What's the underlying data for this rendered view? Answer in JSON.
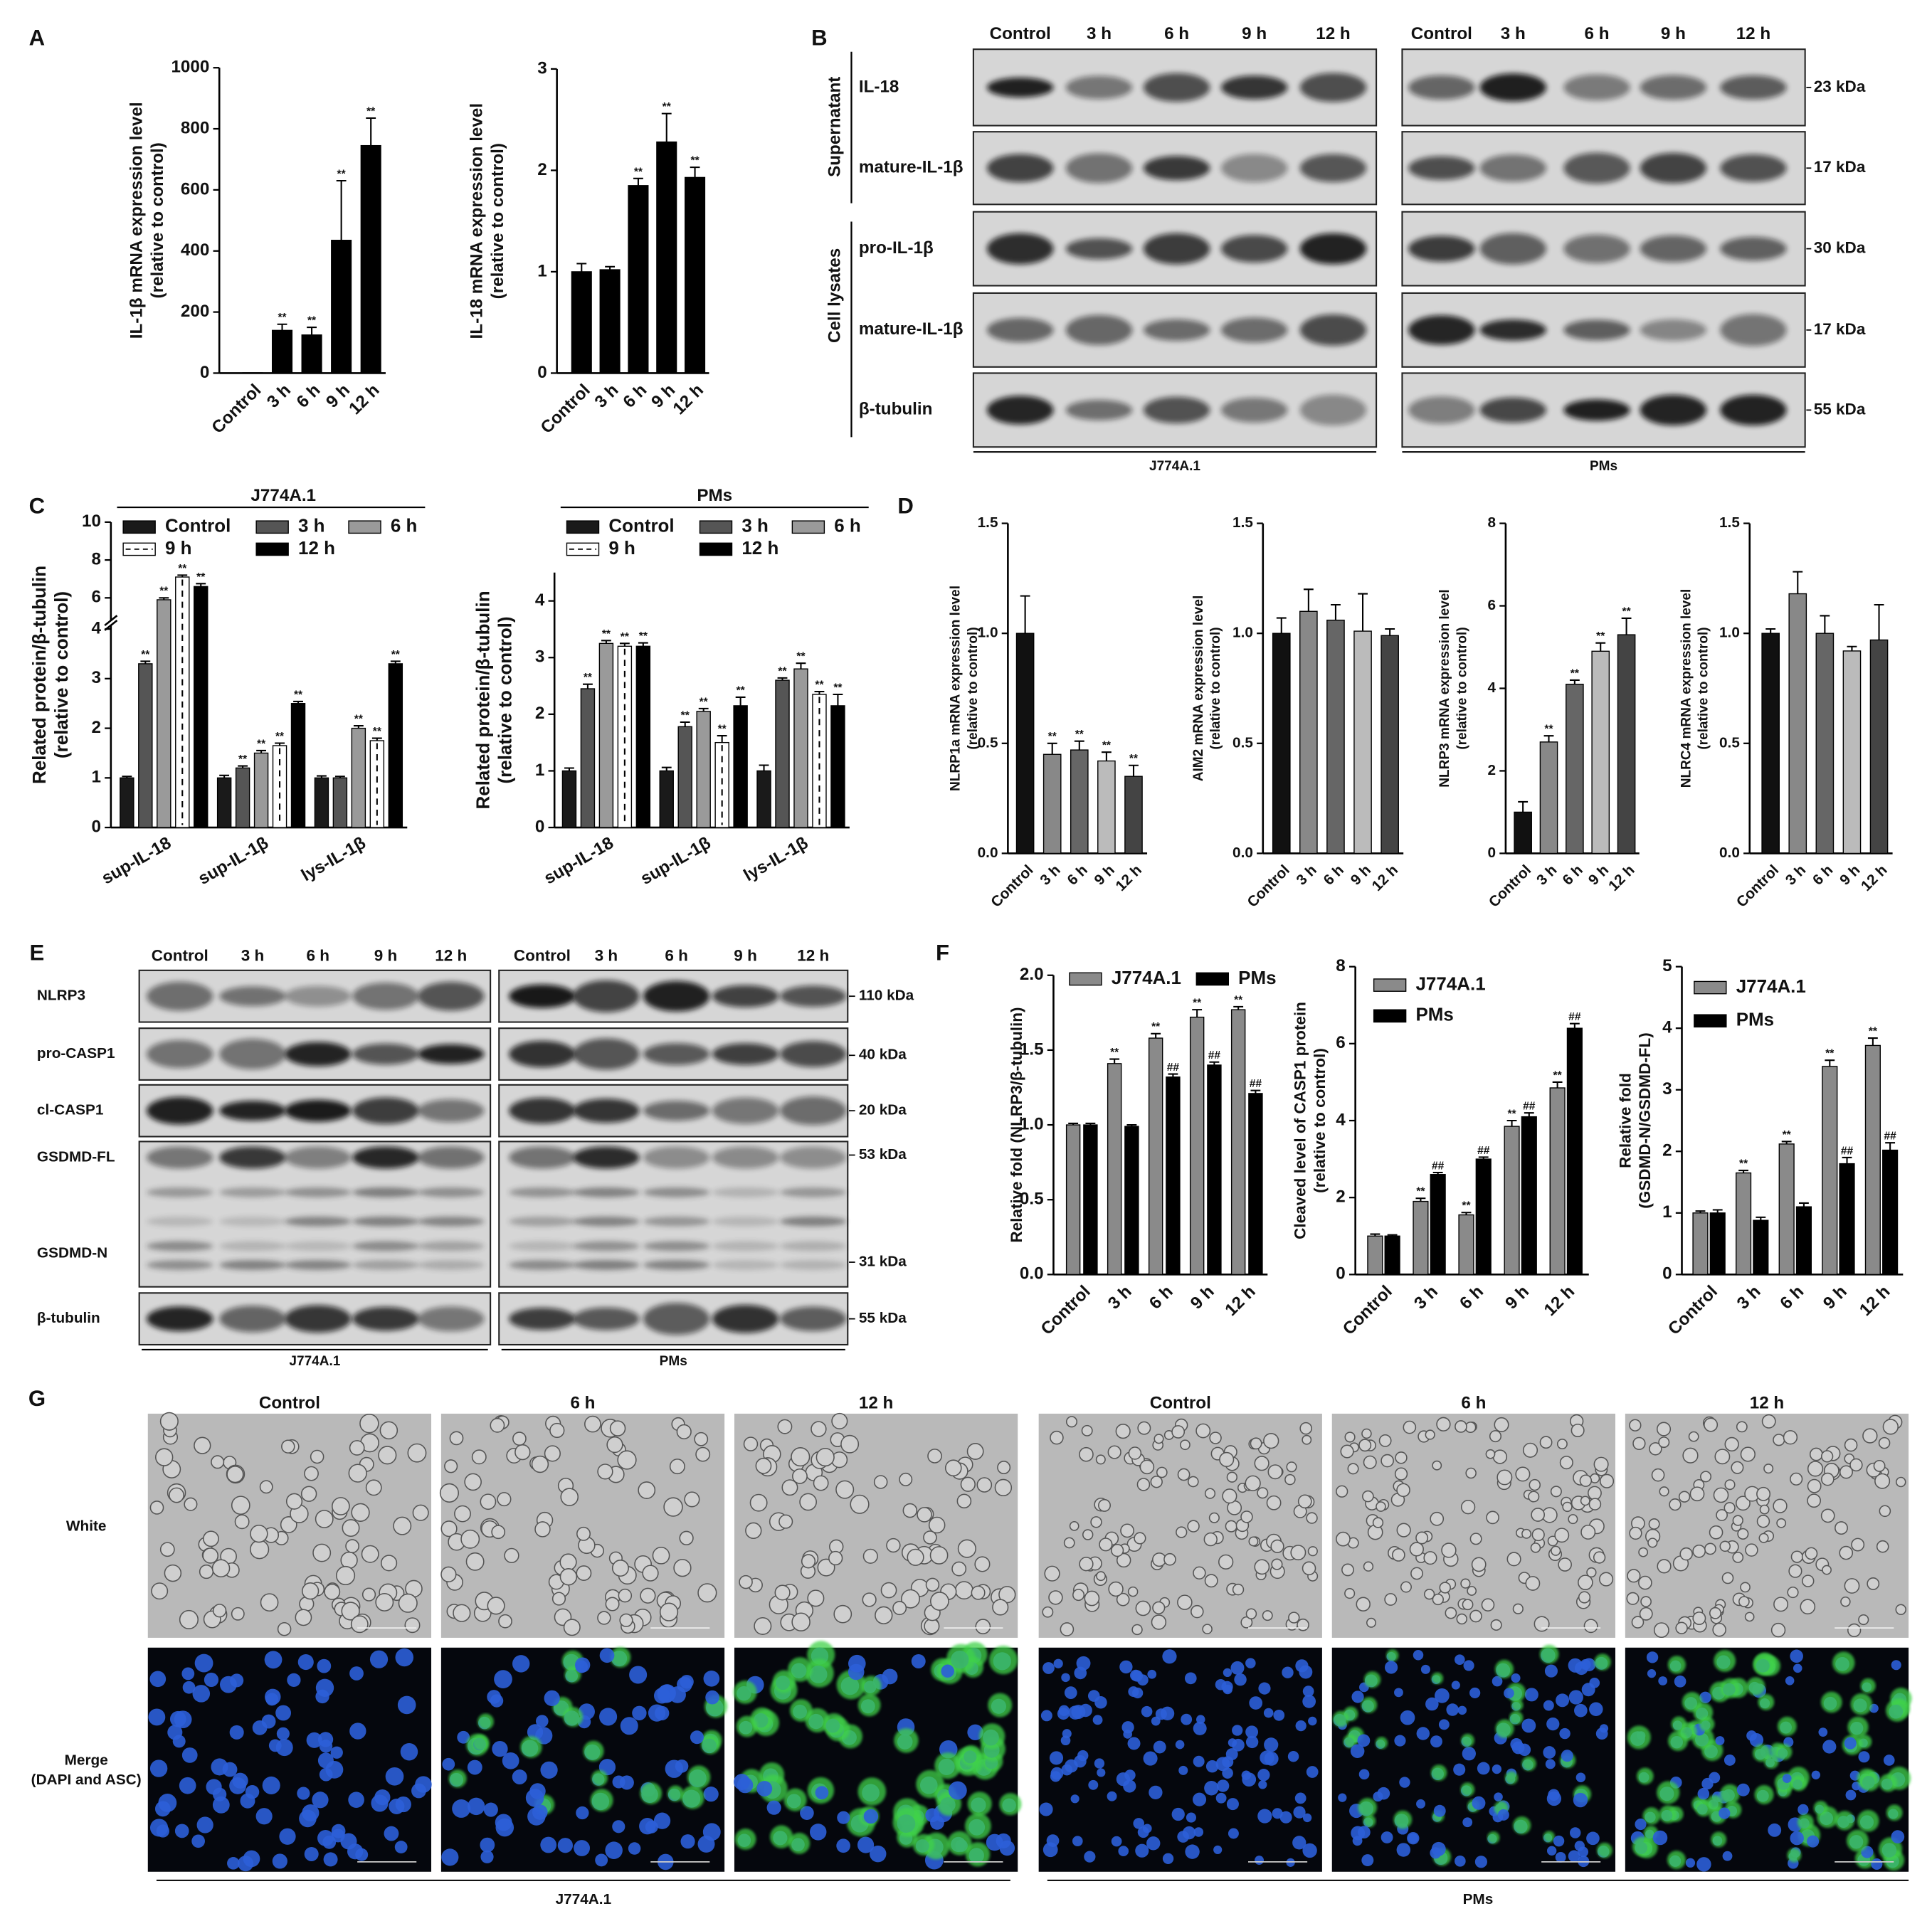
{
  "panel_labels": [
    "A",
    "B",
    "C",
    "D",
    "E",
    "F",
    "G"
  ],
  "chart_data": [
    {
      "type": "bar",
      "ylabel": [
        "IL-1β mRNA expression level",
        "(relative to control)"
      ],
      "categories": [
        "Control",
        "3 h",
        "6 h",
        "9 h",
        "12 h"
      ],
      "values": [
        1,
        140,
        125,
        435,
        745
      ],
      "errors": [
        null,
        20,
        25,
        195,
        90
      ],
      "annotations": [
        null,
        "**",
        "**",
        "**",
        "**"
      ],
      "colors": [
        "#000000",
        "#000000",
        "#000000",
        "#000000",
        "#000000"
      ],
      "ylim": [
        0,
        1000
      ],
      "yticks": [
        0,
        200,
        400,
        600,
        800,
        1000
      ]
    },
    {
      "type": "bar",
      "ylabel": [
        "IL-18 mRNA expression level",
        "(relative to control)"
      ],
      "categories": [
        "Control",
        "3 h",
        "6 h",
        "9 h",
        "12 h"
      ],
      "values": [
        1.0,
        1.02,
        1.85,
        2.28,
        1.93
      ],
      "errors": [
        0.08,
        0.03,
        0.07,
        0.28,
        0.1
      ],
      "annotations": [
        null,
        null,
        "**",
        "**",
        "**"
      ],
      "colors": [
        "#000000",
        "#000000",
        "#000000",
        "#000000",
        "#000000"
      ],
      "ylim": [
        0,
        3
      ],
      "yticks": [
        0,
        1,
        2,
        3
      ]
    },
    {
      "type": "bar",
      "title": "J774A.1",
      "ylabel": [
        "Related protein/β-tubulin",
        "(relative to control)"
      ],
      "categories": [
        "sup-IL-18",
        "sup-IL-1β",
        "lys-IL-1β"
      ],
      "series": [
        {
          "name": "Control",
          "color": "#1a1a1a",
          "values": [
            1,
            1,
            1
          ],
          "errors": [
            0.03,
            0.05,
            0.04
          ],
          "annotations": [
            null,
            null,
            null
          ]
        },
        {
          "name": "3 h",
          "color": "#555555",
          "values": [
            3.3,
            1.2,
            1.0
          ],
          "errors": [
            0.05,
            0.04,
            0.03
          ],
          "annotations": [
            "**",
            "**",
            null
          ]
        },
        {
          "name": "6 h",
          "color": "#9a9a9a",
          "values": [
            5.9,
            1.5,
            2.0
          ],
          "errors": [
            0.1,
            0.05,
            0.05
          ],
          "annotations": [
            "**",
            "**",
            "**"
          ]
        },
        {
          "name": "9 h",
          "color": "#ffffff",
          "values": [
            7.1,
            1.65,
            1.75
          ],
          "errors": [
            0.1,
            0.05,
            0.05
          ],
          "annotations": [
            "**",
            "**",
            "**"
          ]
        },
        {
          "name": "12 h",
          "color": "#000000",
          "values": [
            6.6,
            2.5,
            3.3
          ],
          "errors": [
            0.15,
            0.04,
            0.05
          ],
          "annotations": [
            "**",
            "**",
            "**"
          ]
        }
      ],
      "ylim": [
        0,
        10
      ],
      "axis_break": [
        4,
        5
      ],
      "yticks": [
        0,
        1,
        2,
        3,
        4,
        6,
        8,
        10
      ]
    },
    {
      "type": "bar",
      "title": "PMs",
      "ylabel": [
        "Related protein/β-tubulin",
        "(relative to control)"
      ],
      "categories": [
        "sup-IL-18",
        "sup-IL-1β",
        "lys-IL-1β"
      ],
      "series": [
        {
          "name": "Control",
          "color": "#1a1a1a",
          "values": [
            1,
            1,
            1
          ],
          "errors": [
            0.05,
            0.06,
            0.1
          ],
          "annotations": [
            null,
            null,
            null
          ]
        },
        {
          "name": "3 h",
          "color": "#555555",
          "values": [
            2.45,
            1.78,
            2.6
          ],
          "errors": [
            0.08,
            0.08,
            0.04
          ],
          "annotations": [
            "**",
            "**",
            "**"
          ]
        },
        {
          "name": "6 h",
          "color": "#9a9a9a",
          "values": [
            3.25,
            2.05,
            2.8
          ],
          "errors": [
            0.05,
            0.05,
            0.1
          ],
          "annotations": [
            "**",
            "**",
            "**"
          ]
        },
        {
          "name": "9 h",
          "color": "#ffffff",
          "values": [
            3.2,
            1.5,
            2.35
          ],
          "errors": [
            0.05,
            0.12,
            0.05
          ],
          "annotations": [
            "**",
            "**",
            "**"
          ]
        },
        {
          "name": "12 h",
          "color": "#000000",
          "values": [
            3.2,
            2.15,
            2.15
          ],
          "errors": [
            0.06,
            0.15,
            0.2
          ],
          "annotations": [
            "**",
            "**",
            "**"
          ]
        }
      ],
      "ylim": [
        0,
        4.5
      ],
      "yticks": [
        0,
        1,
        2,
        3,
        4
      ]
    },
    {
      "type": "bar",
      "ylabel": [
        "NLRP1a mRNA expression level",
        "(relative to control)"
      ],
      "categories": [
        "Control",
        "3 h",
        "6 h",
        "9 h",
        "12 h"
      ],
      "values": [
        1.0,
        0.45,
        0.47,
        0.42,
        0.35
      ],
      "errors": [
        0.17,
        0.05,
        0.04,
        0.04,
        0.05
      ],
      "annotations": [
        null,
        "**",
        "**",
        "**",
        "**"
      ],
      "colors": [
        "#111111",
        "#888888",
        "#666666",
        "#bbbbbb",
        "#444444"
      ],
      "ylim": [
        0,
        1.5
      ],
      "yticks": [
        {
          "value": 0,
          "label": "0.0"
        },
        0.5,
        {
          "value": 1,
          "label": "1.0"
        },
        1.5
      ]
    },
    {
      "type": "bar",
      "ylabel": [
        "AIM2 mRNA expression level",
        "(relative to control)"
      ],
      "categories": [
        "Control",
        "3 h",
        "6 h",
        "9 h",
        "12 h"
      ],
      "values": [
        1.0,
        1.1,
        1.06,
        1.01,
        0.99
      ],
      "errors": [
        0.07,
        0.1,
        0.07,
        0.17,
        0.03
      ],
      "annotations": [
        null,
        null,
        null,
        null,
        null
      ],
      "colors": [
        "#111111",
        "#888888",
        "#666666",
        "#bbbbbb",
        "#444444"
      ],
      "ylim": [
        0,
        1.5
      ],
      "yticks": [
        {
          "value": 0,
          "label": "0.0"
        },
        0.5,
        {
          "value": 1,
          "label": "1.0"
        },
        1.5
      ]
    },
    {
      "type": "bar",
      "ylabel": [
        "NLRP3 mRNA expression level",
        "(relative to control)"
      ],
      "categories": [
        "Control",
        "3 h",
        "6 h",
        "9 h",
        "12 h"
      ],
      "values": [
        1.0,
        2.7,
        4.1,
        4.9,
        5.3
      ],
      "errors": [
        0.25,
        0.15,
        0.1,
        0.2,
        0.4
      ],
      "annotations": [
        null,
        "**",
        "**",
        "**",
        "**"
      ],
      "colors": [
        "#111111",
        "#888888",
        "#666666",
        "#bbbbbb",
        "#444444"
      ],
      "ylim": [
        0,
        8
      ],
      "yticks": [
        0,
        2,
        4,
        6,
        8
      ]
    },
    {
      "type": "bar",
      "ylabel": [
        "NLRC4 mRNA expression level",
        "(relative to control)"
      ],
      "categories": [
        "Control",
        "3 h",
        "6 h",
        "9 h",
        "12 h"
      ],
      "values": [
        1.0,
        1.18,
        1.0,
        0.92,
        0.97
      ],
      "errors": [
        0.02,
        0.1,
        0.08,
        0.02,
        0.16
      ],
      "annotations": [
        null,
        null,
        null,
        null,
        null
      ],
      "colors": [
        "#111111",
        "#888888",
        "#666666",
        "#bbbbbb",
        "#444444"
      ],
      "ylim": [
        0,
        1.5
      ],
      "yticks": [
        {
          "value": 0,
          "label": "0.0"
        },
        0.5,
        {
          "value": 1,
          "label": "1.0"
        },
        1.5
      ]
    },
    {
      "type": "bar",
      "ylabel": [
        "Relative fold (NLRP3/β-tubulin)"
      ],
      "categories": [
        "Control",
        "3 h",
        "6 h",
        "9 h",
        "12 h"
      ],
      "series": [
        {
          "name": "J774A.1",
          "color": "#8a8a8a",
          "values": [
            1.0,
            1.41,
            1.58,
            1.72,
            1.77
          ],
          "errors": [
            0.01,
            0.03,
            0.03,
            0.05,
            0.02
          ],
          "annotations": [
            null,
            "**",
            "**",
            "**",
            "**"
          ]
        },
        {
          "name": "PMs",
          "color": "#000000",
          "values": [
            1.0,
            0.99,
            1.32,
            1.4,
            1.21
          ],
          "errors": [
            0.01,
            0.01,
            0.02,
            0.02,
            0.02
          ],
          "annotations": [
            null,
            null,
            "##",
            "##",
            "##"
          ]
        }
      ],
      "ylim": [
        0,
        2.0
      ],
      "yticks": [
        {
          "value": 0,
          "label": "0.0"
        },
        0.5,
        {
          "value": 1,
          "label": "1.0"
        },
        1.5,
        {
          "value": 2,
          "label": "2.0"
        }
      ]
    },
    {
      "type": "bar",
      "ylabel": [
        "Cleaved level of CASP1 protein",
        "(relative to control)"
      ],
      "categories": [
        "Control",
        "3 h",
        "6 h",
        "9 h",
        "12 h"
      ],
      "series": [
        {
          "name": "J774A.1",
          "color": "#8a8a8a",
          "values": [
            1.0,
            1.9,
            1.55,
            3.85,
            4.85
          ],
          "errors": [
            0.05,
            0.08,
            0.06,
            0.15,
            0.15
          ],
          "annotations": [
            null,
            "**",
            "**",
            "**",
            "**"
          ]
        },
        {
          "name": "PMs",
          "color": "#000000",
          "values": [
            1.0,
            2.6,
            3.0,
            4.1,
            6.4
          ],
          "errors": [
            0.03,
            0.05,
            0.05,
            0.1,
            0.12
          ],
          "annotations": [
            null,
            "##",
            "##",
            "##",
            "##"
          ]
        }
      ],
      "ylim": [
        0,
        8
      ],
      "yticks": [
        0,
        2,
        4,
        6,
        8
      ]
    },
    {
      "type": "bar",
      "ylabel": [
        "Relative fold",
        "(GSDMD-N/GSDMD-FL)"
      ],
      "categories": [
        "Control",
        "3 h",
        "6 h",
        "9 h",
        "12 h"
      ],
      "series": [
        {
          "name": "J774A.1",
          "color": "#8a8a8a",
          "values": [
            1.0,
            1.65,
            2.12,
            3.38,
            3.72
          ],
          "errors": [
            0.03,
            0.04,
            0.04,
            0.1,
            0.12
          ],
          "annotations": [
            null,
            "**",
            "**",
            "**",
            "**"
          ]
        },
        {
          "name": "PMs",
          "color": "#000000",
          "values": [
            1.0,
            0.88,
            1.1,
            1.8,
            2.02
          ],
          "errors": [
            0.05,
            0.05,
            0.06,
            0.1,
            0.12
          ],
          "annotations": [
            null,
            null,
            null,
            "##",
            "##"
          ]
        }
      ],
      "ylim": [
        0,
        5
      ],
      "yticks": [
        0,
        1,
        2,
        3,
        4,
        5
      ]
    }
  ],
  "blot_B": {
    "columns": [
      "Control",
      "3 h",
      "6 h",
      "9 h",
      "12 h"
    ],
    "sections": [
      "Supernatant",
      "Cell lysates"
    ],
    "rows": [
      "IL-18",
      "mature-IL-1β",
      "pro-IL-1β",
      "mature-IL-1β",
      "β-tubulin"
    ],
    "sizes": [
      "23 kDa",
      "17 kDa",
      "30 kDa",
      "17 kDa",
      "55 kDa"
    ],
    "groups": [
      "J774A.1",
      "PMs"
    ]
  },
  "blot_E": {
    "columns": [
      "Control",
      "3 h",
      "6 h",
      "9 h",
      "12 h"
    ],
    "rows": [
      "NLRP3",
      "pro-CASP1",
      "cl-CASP1",
      "GSDMD-FL",
      "GSDMD-N",
      "β-tubulin"
    ],
    "sizes": [
      "110 kDa",
      "40 kDa",
      "20 kDa",
      "53 kDa",
      "31 kDa",
      "55 kDa"
    ],
    "groups": [
      "J774A.1",
      "PMs"
    ]
  },
  "microscopy_G": {
    "columns": [
      "Control",
      "6 h",
      "12 h"
    ],
    "rows": [
      [
        "White"
      ],
      [
        "Merge",
        "(DAPI and ASC)"
      ]
    ],
    "groups": [
      "J774A.1",
      "PMs"
    ]
  }
}
